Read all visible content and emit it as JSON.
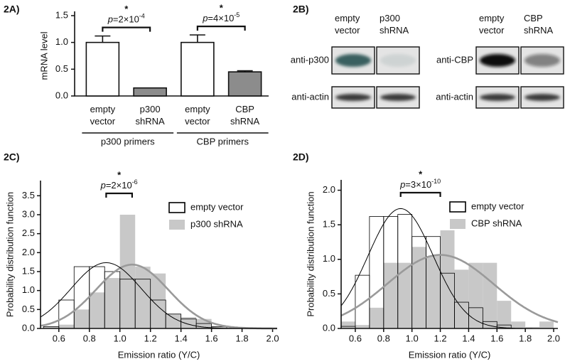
{
  "chart_data": [
    {
      "type": "bar",
      "label": "2A)",
      "ylabel": "mRNA level",
      "categories": [
        [
          "empty",
          "vector"
        ],
        [
          "p300",
          "shRNA"
        ],
        [
          "empty",
          "vector"
        ],
        [
          "CBP",
          "shRNA"
        ]
      ],
      "values": [
        1.0,
        0.15,
        1.0,
        0.45
      ],
      "errors": [
        0.12,
        null,
        0.14,
        0.02
      ],
      "colors": [
        "#ffffff",
        "#8c8c8c",
        "#ffffff",
        "#8c8c8c"
      ],
      "ylim": [
        0,
        1.5
      ],
      "yticks": [
        {
          "value": 0,
          "label": "0.0"
        },
        0.5,
        {
          "value": 1,
          "label": "1.0"
        },
        1.5
      ],
      "group_labels": [
        "p300 primers",
        "CBP primers"
      ],
      "comparisons": [
        {
          "star": "*",
          "p": {
            "italic": "p",
            "text": "=2×10",
            "exponent": "-4"
          }
        },
        {
          "star": "*",
          "p": {
            "italic": "p",
            "text": "=4×10",
            "exponent": "-5"
          }
        }
      ]
    },
    {
      "type": "histogram",
      "label": "2C)",
      "xlabel": "Emission ratio (Y/C)",
      "ylabel": "Probability distribution function",
      "xlim": [
        0.48,
        2.03
      ],
      "xticks": [
        0.6,
        0.8,
        {
          "value": 1,
          "label": "1.0"
        },
        1.2,
        1.4,
        1.6,
        1.8,
        {
          "value": 2,
          "label": "2.0"
        }
      ],
      "ylim": [
        0,
        3.9
      ],
      "yticks": [
        {
          "value": 0,
          "label": "0.0"
        },
        0.5,
        {
          "value": 1,
          "label": "1.0"
        },
        1.5,
        {
          "value": 2,
          "label": "2.0"
        },
        2.5,
        {
          "value": 3,
          "label": "3.0"
        },
        3.5
      ],
      "legend": "upper right",
      "series": [
        {
          "name": "empty vector",
          "color": "#000000",
          "filled": false,
          "fit_color": "#000000",
          "bins": [
            0.5,
            0.6,
            0.7,
            0.8,
            0.9,
            1.0,
            1.1,
            1.2,
            1.3,
            1.4,
            1.5,
            1.6,
            1.7
          ],
          "values": [
            0.05,
            0.75,
            1.63,
            1.63,
            1.5,
            1.3,
            1.3,
            0.75,
            0.38,
            0.25,
            0.13,
            0.05
          ],
          "fit_mean": 0.91,
          "fit_sd": 0.23
        },
        {
          "name": "p300 shRNA",
          "color": "#c8c8c8",
          "filled": true,
          "fit_color": "#9a9a9a",
          "bins": [
            0.5,
            0.6,
            0.7,
            0.8,
            0.9,
            1.0,
            1.1,
            1.2,
            1.3,
            1.4,
            1.5,
            1.6,
            1.7
          ],
          "values": [
            0.05,
            0.1,
            0.5,
            0.95,
            1.33,
            3.0,
            1.63,
            1.45,
            0.38,
            0.3,
            0.25,
            0.05
          ],
          "fit_mean": 1.08,
          "fit_sd": 0.237
        }
      ],
      "comparison": {
        "star": "*",
        "p": {
          "italic": "p",
          "text": "=2×10",
          "exponent": "-6"
        }
      }
    },
    {
      "type": "histogram",
      "label": "2D)",
      "xlabel": "Emission ratio (Y/C)",
      "ylabel": "Probability distribution function",
      "xlim": [
        0.5,
        2.03
      ],
      "xticks": [
        0.6,
        0.8,
        {
          "value": 1,
          "label": "1.0"
        },
        1.2,
        1.4,
        1.6,
        1.8,
        {
          "value": 2,
          "label": "2.0"
        }
      ],
      "ylim": [
        0,
        2.15
      ],
      "yticks": [
        {
          "value": 0,
          "label": "0.0"
        },
        0.5,
        {
          "value": 1,
          "label": "1.0"
        },
        1.5,
        {
          "value": 2,
          "label": "2.0"
        }
      ],
      "legend": "upper right",
      "series": [
        {
          "name": "empty vector",
          "color": "#000000",
          "filled": false,
          "fit_color": "#000000",
          "bins": [
            0.5,
            0.6,
            0.7,
            0.8,
            0.9,
            1.0,
            1.1,
            1.2,
            1.3,
            1.4,
            1.5,
            1.6,
            1.7
          ],
          "values": [
            0.03,
            0.77,
            1.62,
            1.62,
            1.65,
            1.33,
            1.33,
            0.8,
            0.38,
            0.3,
            0.1,
            0.05
          ],
          "fit_mean": 0.92,
          "fit_sd": 0.23
        },
        {
          "name": "CBP shRNA",
          "color": "#c8c8c8",
          "filled": true,
          "fit_color": "#9a9a9a",
          "bins": [
            0.5,
            0.6,
            0.7,
            0.8,
            0.9,
            1.0,
            1.1,
            1.2,
            1.3,
            1.4,
            1.5,
            1.6,
            1.7,
            1.8,
            1.9,
            2.0
          ],
          "values": [
            0.1,
            0.05,
            0.3,
            0.95,
            0.95,
            1.18,
            1.05,
            1.42,
            0.85,
            0.95,
            0.95,
            0.4,
            0.1,
            0.02,
            0.1
          ],
          "fit_mean": 1.2,
          "fit_sd": 0.375
        }
      ],
      "comparison": {
        "star": "*",
        "p": {
          "italic": "p",
          "text": "=3×10",
          "exponent": "-10"
        }
      }
    }
  ],
  "blot_panel": {
    "label": "2B)",
    "groups": [
      {
        "columns": [
          [
            "empty",
            "vector"
          ],
          [
            "p300",
            "shRNA"
          ]
        ],
        "rows": [
          "anti-p300",
          "anti-actin"
        ]
      },
      {
        "columns": [
          [
            "empty",
            "vector"
          ],
          [
            "CBP",
            "shRNA"
          ]
        ],
        "rows": [
          "anti-CBP",
          "anti-actin"
        ]
      }
    ]
  }
}
